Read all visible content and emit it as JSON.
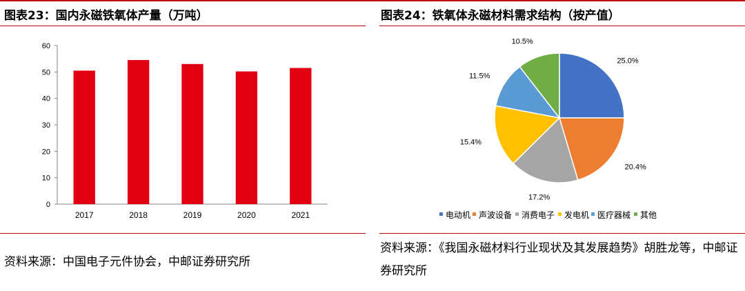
{
  "left_panel": {
    "title": "图表23：国内永磁铁氧体产量（万吨）",
    "source": "资料来源：中国电子元件协会，中邮证券研究所"
  },
  "right_panel": {
    "title": "图表24：铁氧体永磁材料需求结构（按产值）",
    "source": "资料来源：《我国永磁材料行业现状及其发展趋势》胡胜龙等，中邮证券研究所"
  },
  "colors": {
    "accent": "#c00000",
    "bar": "#e00012"
  },
  "chart_data": [
    {
      "type": "bar",
      "title": "",
      "categories": [
        "2017",
        "2018",
        "2019",
        "2020",
        "2021"
      ],
      "values": [
        50.5,
        54.5,
        53.0,
        50.2,
        51.5
      ],
      "ylim": [
        0,
        60
      ],
      "yticks": [
        0,
        10,
        20,
        30,
        40,
        50,
        60
      ],
      "xlabel": "",
      "ylabel": "",
      "grid": false,
      "color": "#e00012"
    },
    {
      "type": "pie",
      "title": "",
      "labels": [
        "电动机",
        "声波设备",
        "消费电子",
        "发电机",
        "医疗器械",
        "其他"
      ],
      "values": [
        25.0,
        20.4,
        17.2,
        15.4,
        11.5,
        10.5
      ],
      "value_labels": [
        "25.0%",
        "20.4%",
        "17.2%",
        "15.4%",
        "11.5%",
        "10.5%"
      ],
      "colors": [
        "#4472c4",
        "#ed7d31",
        "#a5a5a5",
        "#ffc000",
        "#5b9bd5",
        "#70ad47"
      ],
      "legend": "bottom"
    }
  ]
}
